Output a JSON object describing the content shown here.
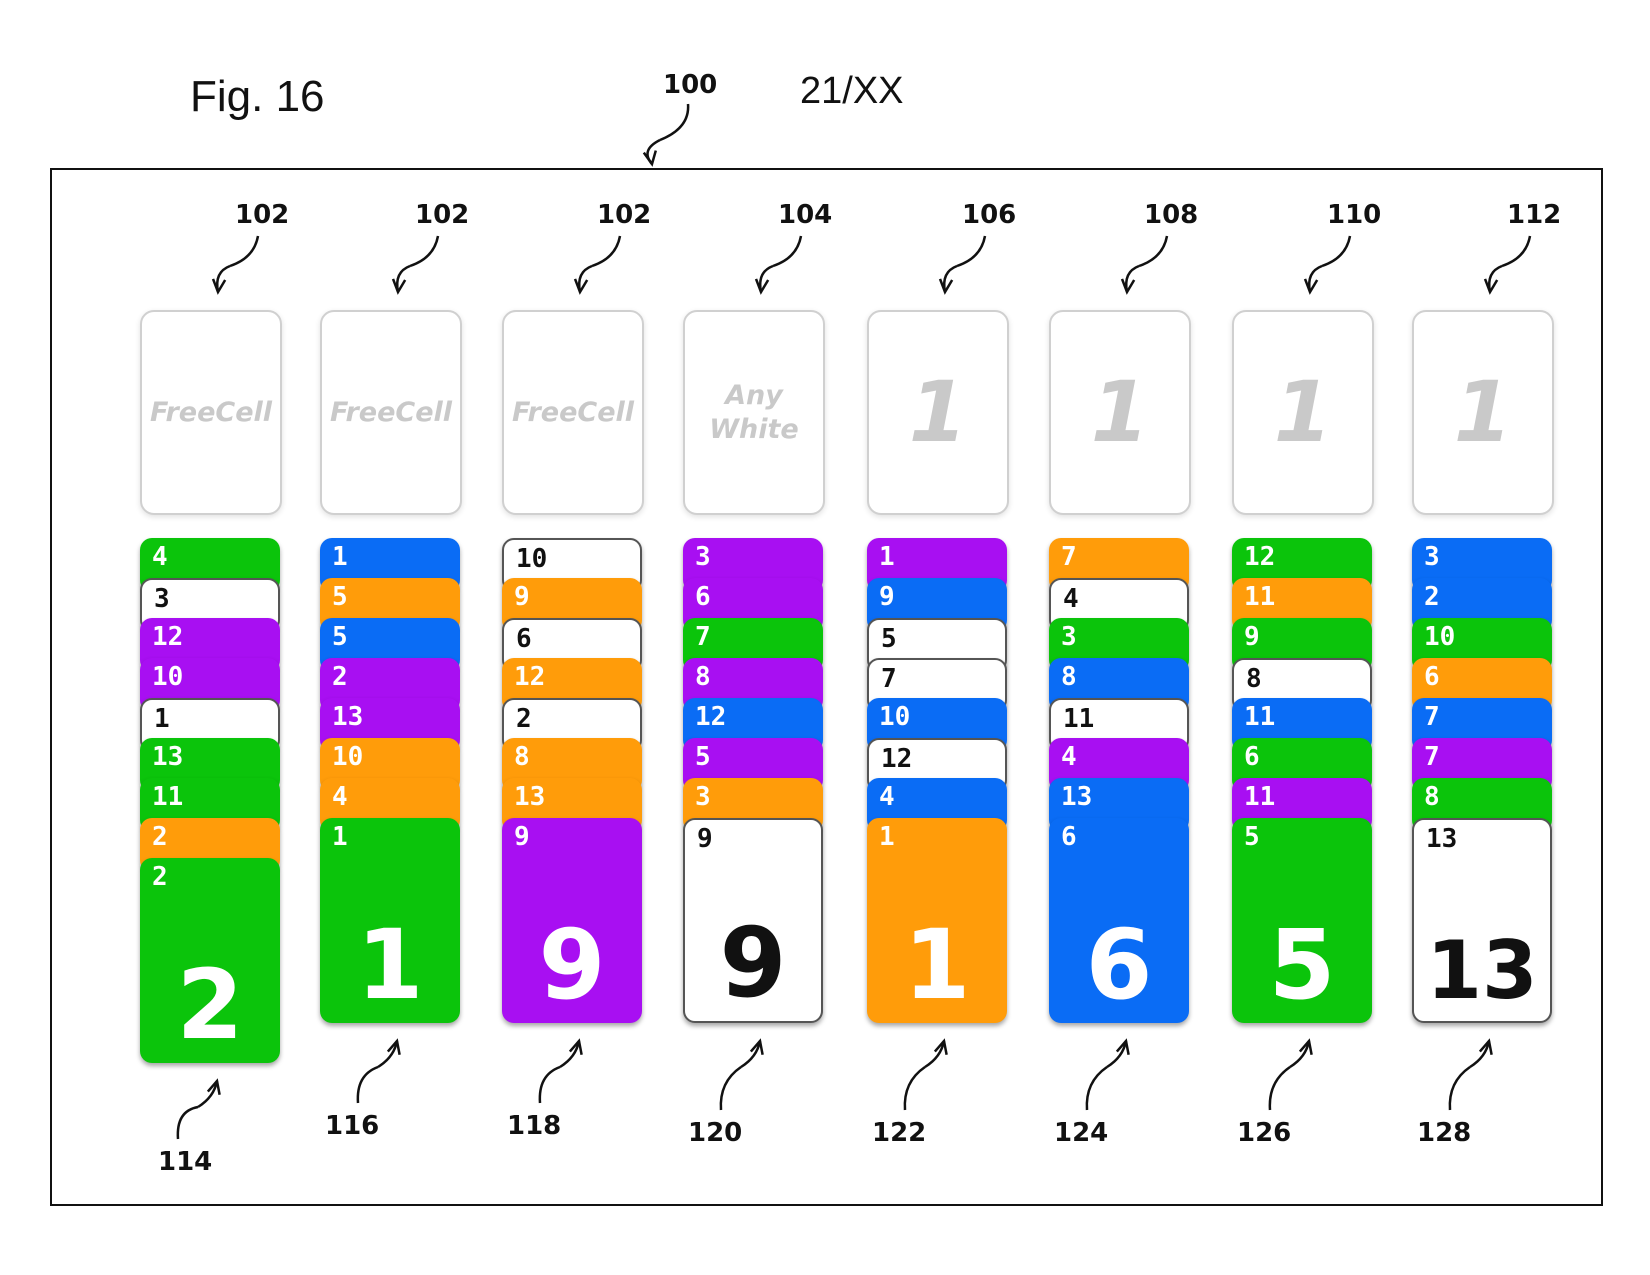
{
  "figure": {
    "label": "Fig. 16",
    "page": "21/XX",
    "ref": "100"
  },
  "colors": {
    "green": "#0bc40b",
    "white": "#ffffff",
    "purple": "#a80ff2",
    "blue": "#0a6cf5",
    "orange": "#ff9c0a",
    "cell_text": "#c9c9c9"
  },
  "top_cells": [
    {
      "ref": "102",
      "text": "FreeCell",
      "style": "word"
    },
    {
      "ref": "102",
      "text": "FreeCell",
      "style": "word"
    },
    {
      "ref": "102",
      "text": "FreeCell",
      "style": "word"
    },
    {
      "ref": "104",
      "text": "Any\nWhite",
      "style": "word"
    },
    {
      "ref": "106",
      "text": "1",
      "style": "big"
    },
    {
      "ref": "108",
      "text": "1",
      "style": "big"
    },
    {
      "ref": "110",
      "text": "1",
      "style": "big"
    },
    {
      "ref": "112",
      "text": "1",
      "style": "big"
    }
  ],
  "columns": [
    {
      "ref": "114",
      "cards": [
        {
          "value": "4",
          "color": "green"
        },
        {
          "value": "3",
          "color": "white"
        },
        {
          "value": "12",
          "color": "purple"
        },
        {
          "value": "10",
          "color": "purple"
        },
        {
          "value": "1",
          "color": "white"
        },
        {
          "value": "13",
          "color": "green"
        },
        {
          "value": "11",
          "color": "green"
        },
        {
          "value": "2",
          "color": "orange"
        },
        {
          "value": "2",
          "color": "green"
        }
      ]
    },
    {
      "ref": "116",
      "cards": [
        {
          "value": "1",
          "color": "blue"
        },
        {
          "value": "5",
          "color": "orange"
        },
        {
          "value": "5",
          "color": "blue"
        },
        {
          "value": "2",
          "color": "purple"
        },
        {
          "value": "13",
          "color": "purple"
        },
        {
          "value": "10",
          "color": "orange"
        },
        {
          "value": "4",
          "color": "orange"
        },
        {
          "value": "1",
          "color": "green"
        }
      ]
    },
    {
      "ref": "118",
      "cards": [
        {
          "value": "10",
          "color": "white"
        },
        {
          "value": "9",
          "color": "orange"
        },
        {
          "value": "6",
          "color": "white"
        },
        {
          "value": "12",
          "color": "orange"
        },
        {
          "value": "2",
          "color": "white"
        },
        {
          "value": "8",
          "color": "orange"
        },
        {
          "value": "13",
          "color": "orange"
        },
        {
          "value": "9",
          "color": "purple"
        }
      ]
    },
    {
      "ref": "120",
      "cards": [
        {
          "value": "3",
          "color": "purple"
        },
        {
          "value": "6",
          "color": "purple"
        },
        {
          "value": "7",
          "color": "green"
        },
        {
          "value": "8",
          "color": "purple"
        },
        {
          "value": "12",
          "color": "blue"
        },
        {
          "value": "5",
          "color": "purple"
        },
        {
          "value": "3",
          "color": "orange"
        },
        {
          "value": "9",
          "color": "white"
        }
      ]
    },
    {
      "ref": "122",
      "cards": [
        {
          "value": "1",
          "color": "purple"
        },
        {
          "value": "9",
          "color": "blue"
        },
        {
          "value": "5",
          "color": "white"
        },
        {
          "value": "7",
          "color": "white"
        },
        {
          "value": "10",
          "color": "blue"
        },
        {
          "value": "12",
          "color": "white"
        },
        {
          "value": "4",
          "color": "blue"
        },
        {
          "value": "1",
          "color": "orange"
        }
      ]
    },
    {
      "ref": "124",
      "cards": [
        {
          "value": "7",
          "color": "orange"
        },
        {
          "value": "4",
          "color": "white"
        },
        {
          "value": "3",
          "color": "green"
        },
        {
          "value": "8",
          "color": "blue"
        },
        {
          "value": "11",
          "color": "white"
        },
        {
          "value": "4",
          "color": "purple"
        },
        {
          "value": "13",
          "color": "blue"
        },
        {
          "value": "6",
          "color": "blue"
        }
      ]
    },
    {
      "ref": "126",
      "cards": [
        {
          "value": "12",
          "color": "green"
        },
        {
          "value": "11",
          "color": "orange"
        },
        {
          "value": "9",
          "color": "green"
        },
        {
          "value": "8",
          "color": "white"
        },
        {
          "value": "11",
          "color": "blue"
        },
        {
          "value": "6",
          "color": "green"
        },
        {
          "value": "11",
          "color": "purple"
        },
        {
          "value": "5",
          "color": "green"
        }
      ]
    },
    {
      "ref": "128",
      "cards": [
        {
          "value": "3",
          "color": "blue"
        },
        {
          "value": "2",
          "color": "blue"
        },
        {
          "value": "10",
          "color": "green"
        },
        {
          "value": "6",
          "color": "orange"
        },
        {
          "value": "7",
          "color": "blue"
        },
        {
          "value": "7",
          "color": "purple"
        },
        {
          "value": "8",
          "color": "green"
        },
        {
          "value": "13",
          "color": "white"
        }
      ]
    }
  ]
}
